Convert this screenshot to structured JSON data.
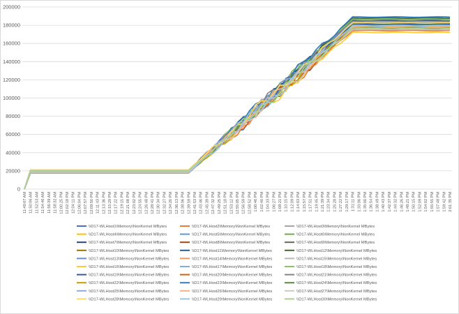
{
  "chart_data": {
    "type": "line",
    "title": "",
    "xlabel": "",
    "ylabel": "",
    "ylim": [
      0,
      200000
    ],
    "yticks": [
      "0",
      "20000",
      "40000",
      "60000",
      "80000",
      "100000",
      "120000",
      "140000",
      "160000",
      "180000",
      "200000"
    ],
    "x": [
      "11:49:07 AM",
      "11:50:06 AM",
      "11:52:53 AM",
      "11:54:46 AM",
      "11:56:39 AM",
      "11:58:32 AM",
      "12:00:25 PM",
      "12:02:18 PM",
      "12:04:11 PM",
      "12:06:04 PM",
      "12:07:57 PM",
      "12:09:50 PM",
      "12:11:43 PM",
      "12:13:36 PM",
      "12:15:29 PM",
      "12:17:22 PM",
      "12:19:15 PM",
      "12:21:08 PM",
      "12:23:02 PM",
      "12:24:55 PM",
      "12:26:48 PM",
      "12:28:41 PM",
      "12:30:34 PM",
      "12:32:27 PM",
      "12:34:20 PM",
      "12:36:13 PM",
      "12:38:06 PM",
      "12:39:59 PM",
      "12:41:53 PM",
      "12:43:46 PM",
      "12:45:39 PM",
      "12:47:32 PM",
      "12:49:25 PM",
      "12:51:18 PM",
      "12:53:12 PM",
      "12:55:05 PM",
      "12:56:59 PM",
      "12:58:52 PM",
      "1:00:46 PM",
      "1:02:40 PM",
      "1:04:33 PM",
      "1:06:27 PM",
      "1:08:21 PM",
      "1:10:15 PM",
      "1:12:09 PM",
      "1:14:03 PM",
      "1:15:57 PM",
      "1:17:51 PM",
      "1:19:45 PM",
      "1:21:39 PM",
      "1:23:34 PM",
      "1:25:28 PM",
      "1:27:22 PM",
      "1:29:17 PM",
      "1:31:11 PM",
      "1:33:06 PM",
      "1:35:00 PM",
      "1:36:54 PM",
      "1:38:49 PM",
      "1:40:43 PM",
      "1:42:37 PM",
      "1:44:32 PM",
      "1:46:26 PM",
      "1:48:21 PM",
      "1:50:15 PM",
      "1:52:09 PM",
      "1:54:02 PM",
      "1:55:55 PM",
      "1:57:48 PM",
      "1:59:42 PM",
      "2:01:35 PM"
    ],
    "plateau_start": [
      18000,
      17500,
      20500,
      19500,
      21000,
      17800,
      19000,
      18500,
      20000,
      17600,
      19800,
      18200,
      20800,
      19200,
      21200,
      17900,
      18800,
      20200,
      19600,
      18600,
      20600,
      17700,
      19400,
      18400,
      20400,
      19100,
      18900,
      21100,
      17800,
      20300
    ],
    "plateau_end": [
      176000,
      174000,
      182000,
      178000,
      181000,
      187000,
      184000,
      177000,
      186000,
      179000,
      185000,
      188000,
      183000,
      175000,
      180000,
      172000,
      178500,
      186500,
      181500,
      176500,
      184500,
      177500,
      189000,
      180500,
      183500,
      178800,
      175500,
      182500,
      179500,
      176800
    ],
    "series": [
      {
        "name": "\\\\D17-WLHost1\\Memory\\NonKernel MBytes",
        "color": "#4472c4"
      },
      {
        "name": "\\\\D17-WLHost2\\Memory\\NonKernel MBytes",
        "color": "#ed7d31"
      },
      {
        "name": "\\\\D17-WLHost3\\Memory\\NonKernel MBytes",
        "color": "#a5a5a5"
      },
      {
        "name": "\\\\D17-WLHost4\\Memory\\NonKernel MBytes",
        "color": "#ffc000"
      },
      {
        "name": "\\\\D17-WLHost5\\Memory\\NonKernel MBytes",
        "color": "#5b9bd5"
      },
      {
        "name": "\\\\D17-WLHost6\\Memory\\NonKernel MBytes",
        "color": "#70ad47"
      },
      {
        "name": "\\\\D17-WLHost7\\Memory\\NonKernel MBytes",
        "color": "#264478"
      },
      {
        "name": "\\\\D17-WLHost8\\Memory\\NonKernel MBytes",
        "color": "#9e480e"
      },
      {
        "name": "\\\\D17-WLHost9\\Memory\\NonKernel MBytes",
        "color": "#636363"
      },
      {
        "name": "\\\\D17-WLHost10\\Memory\\NonKernel MBytes",
        "color": "#997300"
      },
      {
        "name": "\\\\D17-WLHost11\\Memory\\NonKernel MBytes",
        "color": "#255e91"
      },
      {
        "name": "\\\\D17-WLHost12\\Memory\\NonKernel MBytes",
        "color": "#43682b"
      },
      {
        "name": "\\\\D17-WLHost13\\Memory\\NonKernel MBytes",
        "color": "#698ed0"
      },
      {
        "name": "\\\\D17-WLHost14\\Memory\\NonKernel MBytes",
        "color": "#f1975a"
      },
      {
        "name": "\\\\D17-WLHost15\\Memory\\NonKernel MBytes",
        "color": "#b7b7b7"
      },
      {
        "name": "\\\\D17-WLHost16\\Memory\\NonKernel MBytes",
        "color": "#ffcd33"
      },
      {
        "name": "\\\\D17-WLHost17\\Memory\\NonKernel MBytes",
        "color": "#7cafdd"
      },
      {
        "name": "\\\\D17-WLHost18\\Memory\\NonKernel MBytes",
        "color": "#8cc168"
      },
      {
        "name": "\\\\D17-WLHost19\\Memory\\NonKernel MBytes",
        "color": "#335aa1"
      },
      {
        "name": "\\\\D17-WLHost20\\Memory\\NonKernel MBytes",
        "color": "#d26012"
      },
      {
        "name": "\\\\D17-WLHost21\\Memory\\NonKernel MBytes",
        "color": "#848484"
      },
      {
        "name": "\\\\D17-WLHost22\\Memory\\NonKernel MBytes",
        "color": "#cc9a00"
      },
      {
        "name": "\\\\D17-WLHost23\\Memory\\NonKernel MBytes",
        "color": "#327dc2"
      },
      {
        "name": "\\\\D17-WLHost24\\Memory\\NonKernel MBytes",
        "color": "#5a8a39"
      },
      {
        "name": "\\\\D17-WLHost25\\Memory\\NonKernel MBytes",
        "color": "#8faadc"
      },
      {
        "name": "\\\\D17-WLHost26\\Memory\\NonKernel MBytes",
        "color": "#f4b183"
      },
      {
        "name": "\\\\D17-WLHost27\\Memory\\NonKernel MBytes",
        "color": "#c9c9c9"
      },
      {
        "name": "\\\\D17-WLHost28\\Memory\\NonKernel MBytes",
        "color": "#ffd966"
      },
      {
        "name": "\\\\D17-WLHost29\\Memory\\NonKernel MBytes",
        "color": "#9dc3e6"
      },
      {
        "name": "\\\\D17-WLHost30\\Memory\\NonKernel MBytes",
        "color": "#a9d18e"
      }
    ],
    "grid": true,
    "legend_position": "bottom"
  }
}
